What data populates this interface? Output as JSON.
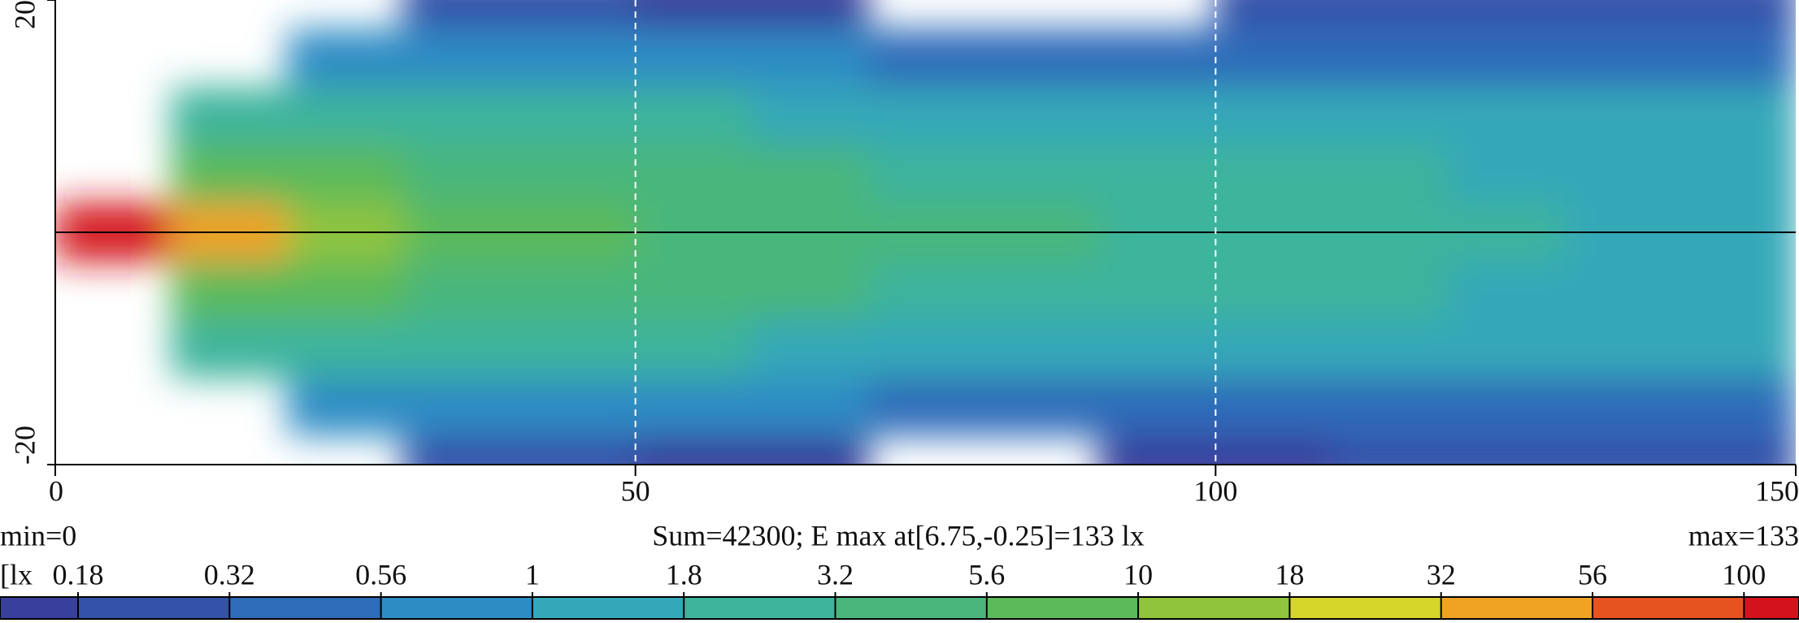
{
  "chart_data": {
    "type": "heatmap",
    "x": [
      5,
      15,
      25,
      35,
      45,
      55,
      65,
      75,
      85,
      95,
      105,
      115,
      125,
      135,
      145
    ],
    "y": [
      20,
      15,
      10,
      5,
      0,
      -5,
      -10,
      -15,
      -20
    ],
    "z": [
      [
        null,
        null,
        null,
        0.3,
        0.2,
        0.15,
        0.15,
        null,
        null,
        null,
        0.2,
        0.25,
        0.25,
        0.3,
        0.3
      ],
      [
        null,
        null,
        0.9,
        0.8,
        0.7,
        0.6,
        0.6,
        0.55,
        0.5,
        0.5,
        0.5,
        0.5,
        0.5,
        0.5,
        0.5
      ],
      [
        null,
        2,
        2.5,
        2.2,
        2,
        1.8,
        1.7,
        1.6,
        1.5,
        1.3,
        1.2,
        1.2,
        1.1,
        1.1,
        1
      ],
      [
        null,
        8,
        6,
        5,
        4,
        3.5,
        3.5,
        3,
        2.8,
        2.2,
        2,
        1.8,
        1.7,
        1.6,
        1.5
      ],
      [
        100,
        40,
        15,
        8,
        6,
        5,
        4.5,
        4,
        3.5,
        2.5,
        2.2,
        2,
        1.8,
        1.7,
        1.6
      ],
      [
        null,
        8,
        6,
        5,
        4,
        3.5,
        3.5,
        3,
        2.8,
        2.2,
        2,
        1.8,
        1.7,
        1.6,
        1.5
      ],
      [
        null,
        2,
        2.5,
        2.2,
        2,
        1.8,
        1.7,
        1.6,
        1.5,
        1.3,
        1.2,
        1.2,
        1.1,
        1.1,
        1
      ],
      [
        null,
        null,
        0.9,
        0.8,
        0.7,
        0.6,
        0.6,
        0.55,
        0.5,
        0.5,
        0.5,
        0.5,
        0.5,
        0.5,
        0.5
      ],
      [
        null,
        null,
        null,
        0.25,
        0.2,
        0.15,
        0.12,
        null,
        null,
        0.1,
        0.15,
        0.2,
        0.2,
        0.25,
        0.25
      ]
    ],
    "xlim": [
      0,
      150
    ],
    "xticks": [
      0,
      50,
      100,
      150
    ],
    "ylim": [
      -20,
      20
    ],
    "yticks": [
      -20,
      20
    ],
    "min_text": "min=0",
    "summary": "Sum=42300; E max at[6.75,-0.25]=133 lx",
    "max_text": "max=133",
    "colorbar": {
      "unit": "[lx",
      "ticks": [
        0.18,
        0.32,
        0.56,
        1,
        1.8,
        3.2,
        5.6,
        10,
        18,
        32,
        56,
        100
      ],
      "colors": [
        "#39409c",
        "#3452aa",
        "#2f6cb9",
        "#2e8cc4",
        "#34a8b8",
        "#3db49c",
        "#4ab67c",
        "#5cba5a",
        "#90c43c",
        "#d6d62a",
        "#f0a222",
        "#e65220",
        "#d4121c"
      ]
    }
  }
}
